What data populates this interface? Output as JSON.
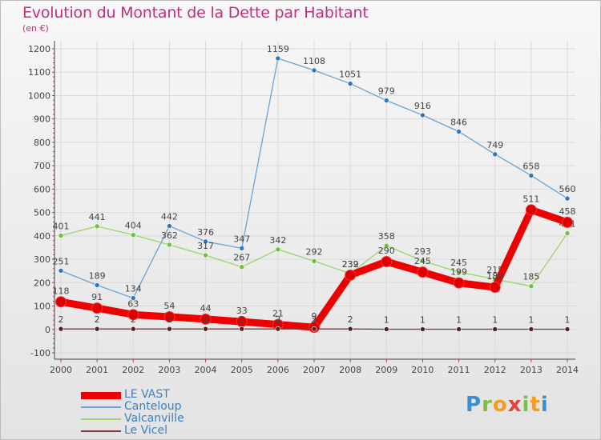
{
  "title": "Evolution du Montant de la Dette par Habitant",
  "subtitle": "(en €)",
  "logo": {
    "text": "Proxiti"
  },
  "colors": {
    "title": "#c0307a",
    "axis": "#444444",
    "grid": "#dadada",
    "label": "#444444",
    "legend_text": "#3c7fc4"
  },
  "chart_data": {
    "type": "line",
    "title": "Evolution du Montant de la Dette par Habitant",
    "ylabel": "(en €)",
    "xlabel": "",
    "ylim": [
      -100,
      1200
    ],
    "yticks": [
      -100,
      0,
      100,
      200,
      300,
      400,
      500,
      600,
      700,
      800,
      900,
      1000,
      1100,
      1200
    ],
    "categories": [
      "2000",
      "2001",
      "2002",
      "2003",
      "2004",
      "2005",
      "2006",
      "2007",
      "2008",
      "2009",
      "2010",
      "2011",
      "2012",
      "2013",
      "2014"
    ],
    "grid": true,
    "legend_position": "bottom-left",
    "series": [
      {
        "name": "Canteloup",
        "color": "#6aa3d6",
        "marker": "#3377bb",
        "style": "thin",
        "values": [
          251,
          189,
          134,
          442,
          376,
          347,
          1159,
          1108,
          1051,
          979,
          916,
          846,
          749,
          658,
          560
        ]
      },
      {
        "name": "Valcanville",
        "color": "#9ad46a",
        "marker": "#6cc23a",
        "style": "thin",
        "values": [
          401,
          441,
          404,
          362,
          317,
          267,
          342,
          292,
          239,
          358,
          293,
          245,
          215,
          185,
          411
        ]
      },
      {
        "name": "LE VAST",
        "color": "#ee0000",
        "marker": "#dd0000",
        "style": "thick",
        "values": [
          118,
          91,
          63,
          54,
          44,
          33,
          21,
          9,
          232,
          290,
          245,
          199,
          180,
          511,
          458
        ]
      },
      {
        "name": "Le Vicel",
        "color": "#7a3a3a",
        "marker": "#5a1f1f",
        "style": "thin",
        "values": [
          2,
          2,
          2,
          2,
          2,
          2,
          2,
          2,
          2,
          1,
          1,
          1,
          1,
          1,
          1
        ]
      }
    ],
    "legend_order": [
      "LE VAST",
      "Canteloup",
      "Valcanville",
      "Le Vicel"
    ]
  }
}
